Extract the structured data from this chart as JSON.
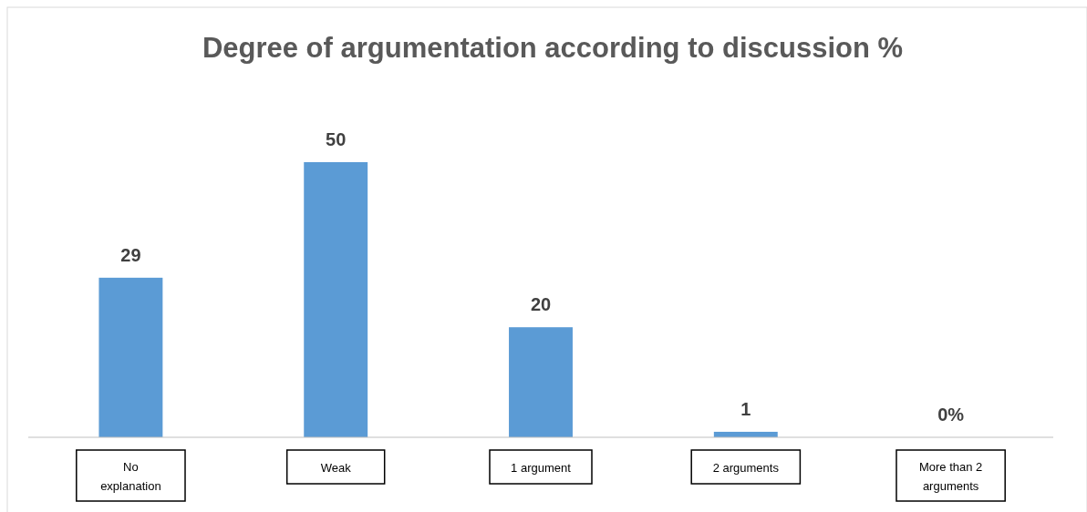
{
  "chart_data": {
    "type": "bar",
    "title": "Degree of argumentation according to discussion %",
    "categories": [
      "No explanation",
      "Weak",
      "1 argument",
      "2 arguments",
      "More than 2 arguments"
    ],
    "values": [
      29,
      50,
      20,
      1,
      0
    ],
    "value_labels": [
      "29",
      "50",
      "20",
      "1",
      "0%"
    ],
    "color": "#5b9bd5"
  }
}
